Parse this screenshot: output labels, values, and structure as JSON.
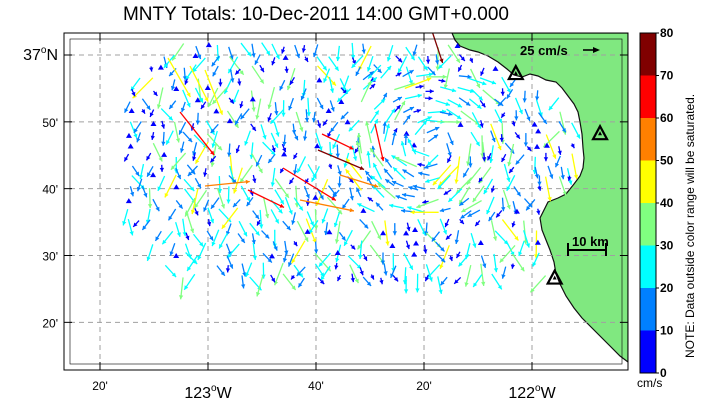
{
  "title": "MNTY Totals: 10-Dec-2011 14:00 GMT+0.000",
  "lat_ticks": [
    {
      "label": "37",
      "deg": "o",
      "hemi": "N",
      "value": 37.0
    },
    {
      "label": "50'",
      "value": 36.8333
    },
    {
      "label": "40'",
      "value": 36.6667
    },
    {
      "label": "30'",
      "value": 36.5
    },
    {
      "label": "20'",
      "value": 36.3333
    }
  ],
  "lon_ticks": [
    {
      "label": "20'",
      "value": -123.3333
    },
    {
      "label": "123",
      "deg": "o",
      "hemi": "W",
      "value": -123.0
    },
    {
      "label": "40'",
      "value": -122.6667
    },
    {
      "label": "20'",
      "value": -122.3333
    },
    {
      "label": "122",
      "deg": "o",
      "hemi": "W",
      "value": -122.0
    }
  ],
  "scale_arrow_label": "25 cm/s",
  "distance_scale_label": "10 km",
  "colorbar": {
    "ticks": [
      "0",
      "10",
      "20",
      "30",
      "40",
      "50",
      "60",
      "70",
      "80"
    ],
    "colors": [
      "#0000ff",
      "#0080ff",
      "#00ffff",
      "#80ff80",
      "#ffff00",
      "#ff8000",
      "#ff0000",
      "#800000"
    ],
    "unit": "cm/s",
    "note": "NOTE: Data outside color range will be saturated."
  },
  "colors": {
    "land": "#80e880",
    "grid": "#a0a0a0"
  },
  "stations": [
    {
      "name": "station-1",
      "lat": 36.955,
      "lon": -122.05
    },
    {
      "name": "station-2",
      "lat": 36.805,
      "lon": -121.79
    },
    {
      "name": "station-3",
      "lat": 36.445,
      "lon": -121.93
    }
  ]
}
